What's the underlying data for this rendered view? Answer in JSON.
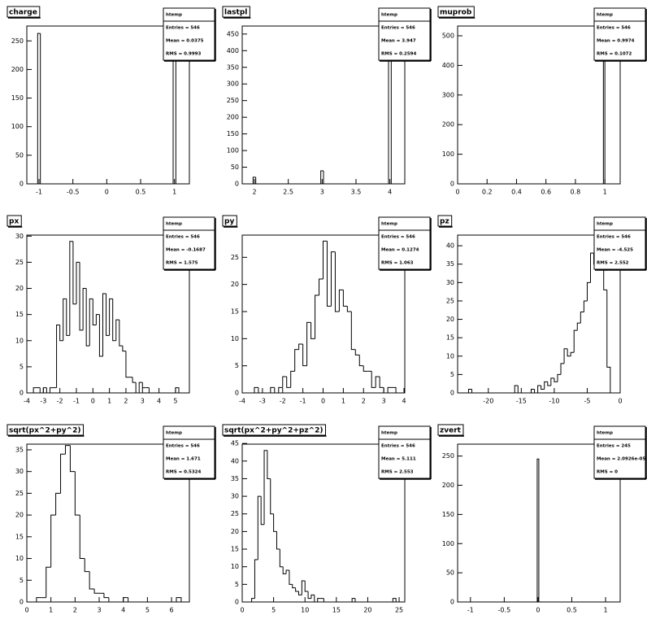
{
  "chart_data": [
    {
      "type": "histogram",
      "title": "charge",
      "color": "#000000",
      "bins": [
        -1.02,
        -0.98,
        0.98,
        1.02
      ],
      "values": [
        263,
        0,
        262
      ],
      "xlim": [
        -1.18,
        1.22
      ],
      "ylim": [
        0,
        276
      ],
      "xticks": [
        -1,
        -0.5,
        0,
        0.5,
        1
      ],
      "yticks": [
        0,
        50,
        100,
        150,
        200,
        250
      ],
      "stats": [
        "htemp",
        "Entries = 546",
        "Mean = 0.0375",
        "RMS = 0.9993"
      ]
    },
    {
      "type": "histogram",
      "title": "lastpl",
      "color": "#000000",
      "bins": [
        1.98,
        2.02,
        2.98,
        3.02,
        3.98,
        4.02
      ],
      "values": [
        20,
        0,
        39,
        0,
        450
      ],
      "xlim": [
        1.82,
        4.22
      ],
      "ylim": [
        0,
        474
      ],
      "xticks": [
        2,
        2.5,
        3,
        3.5,
        4
      ],
      "yticks": [
        0,
        50,
        100,
        150,
        200,
        250,
        300,
        350,
        400,
        450
      ],
      "stats": [
        "htemp",
        "Entries = 546",
        "Mean = 3.947",
        "RMS = 0.2594"
      ]
    },
    {
      "type": "histogram",
      "title": "muprob",
      "color": "#000000",
      "bins": [
        0.99,
        1.0
      ],
      "values": [
        505
      ],
      "xlim": [
        0,
        1.104
      ],
      "ylim": [
        0,
        533
      ],
      "xticks": [
        0,
        0.2,
        0.4,
        0.6,
        0.8,
        1
      ],
      "yticks": [
        0,
        100,
        200,
        300,
        400,
        500
      ],
      "stats": [
        "htemp",
        "Entries = 546",
        "Mean = 0.9974",
        "RMS = 0.1072"
      ]
    },
    {
      "type": "histogram",
      "title": "px",
      "color": "#000000",
      "bins": [
        -3.6,
        -3.4,
        -3.2,
        -3,
        -2.8,
        -2.6,
        -2.4,
        -2.2,
        -2,
        -1.8,
        -1.6,
        -1.4,
        -1.2,
        -1,
        -0.8,
        -0.6,
        -0.4,
        -0.2,
        0,
        0.2,
        0.4,
        0.6,
        0.8,
        1,
        1.2,
        1.4,
        1.6,
        1.8,
        2,
        2.2,
        2.4,
        2.6,
        2.8,
        3,
        3.2,
        3.4,
        3.6,
        3.8,
        4,
        4.2,
        4.4,
        4.6,
        4.8,
        5,
        5.2
      ],
      "values": [
        1,
        1,
        0,
        1,
        0,
        1,
        1,
        13,
        10,
        18,
        11,
        29,
        17,
        25,
        12,
        20,
        9,
        18,
        13,
        15,
        7,
        19,
        11,
        18,
        10,
        14,
        9,
        8,
        3,
        3,
        2,
        0,
        2,
        1,
        1,
        0,
        0,
        0,
        0,
        0,
        0,
        0,
        0,
        1
      ],
      "xlim": [
        -4,
        5.84
      ],
      "ylim": [
        0,
        30.2
      ],
      "xticks": [
        -4,
        -3,
        -2,
        -1,
        0,
        1,
        2,
        3,
        4,
        5
      ],
      "yticks": [
        0,
        5,
        10,
        15,
        20,
        25,
        30
      ],
      "stats": [
        "htemp",
        "Entries = 546",
        "Mean = -0.1687",
        "RMS = 1.575"
      ]
    },
    {
      "type": "histogram",
      "title": "py",
      "color": "#000000",
      "bins": [
        -3.4,
        -3.2,
        -3,
        -2.8,
        -2.6,
        -2.4,
        -2.2,
        -2,
        -1.8,
        -1.6,
        -1.4,
        -1.2,
        -1,
        -0.8,
        -0.6,
        -0.4,
        -0.2,
        0,
        0.2,
        0.4,
        0.6,
        0.8,
        1,
        1.2,
        1.4,
        1.6,
        1.8,
        2,
        2.2,
        2.4,
        2.6,
        2.8,
        3,
        3.2,
        3.4,
        3.6
      ],
      "values": [
        1,
        0,
        0,
        0,
        1,
        0,
        1,
        3,
        1,
        4,
        8,
        9,
        5,
        13,
        10,
        18,
        21,
        28,
        16,
        26,
        15,
        19,
        16,
        15,
        8,
        7,
        5,
        4,
        4,
        1,
        3,
        1,
        0,
        1,
        1
      ],
      "xlim": [
        -4,
        4.04
      ],
      "ylim": [
        0,
        29.1
      ],
      "xticks": [
        -4,
        -3,
        -2,
        -1,
        0,
        1,
        2,
        3,
        4
      ],
      "yticks": [
        0,
        5,
        10,
        15,
        20,
        25
      ],
      "stats": [
        "htemp",
        "Entries = 546",
        "Mean = 0.1274",
        "RMS = 1.063"
      ]
    },
    {
      "type": "histogram",
      "title": "pz",
      "color": "#000000",
      "bins": [
        -23,
        -22.5,
        -22,
        -21.5,
        -21,
        -20.5,
        -20,
        -19.5,
        -19,
        -18.5,
        -18,
        -17.5,
        -17,
        -16.5,
        -16,
        -15.5,
        -15,
        -14.5,
        -14,
        -13.5,
        -13,
        -12.5,
        -12,
        -11.5,
        -11,
        -10.5,
        -10,
        -9.5,
        -9,
        -8.5,
        -8,
        -7.5,
        -7,
        -6.5,
        -6,
        -5.5,
        -5,
        -4.5,
        -4,
        -3.5,
        -3,
        -2.5,
        -2,
        -1.5
      ],
      "values": [
        1,
        0,
        0,
        0,
        0,
        0,
        0,
        0,
        0,
        0,
        0,
        0,
        0,
        0,
        2,
        0,
        0,
        0,
        0,
        1,
        0,
        2,
        1,
        3,
        2,
        4,
        3,
        5,
        8,
        12,
        10,
        11,
        17,
        19,
        22,
        25,
        30,
        38,
        35,
        43,
        40,
        28,
        7
      ],
      "xlim": [
        -24.66,
        0
      ],
      "ylim": [
        0,
        42.9
      ],
      "xticks": [
        -20,
        -15,
        -10,
        -5,
        0
      ],
      "yticks": [
        0,
        5,
        10,
        15,
        20,
        25,
        30,
        35,
        40
      ],
      "stats": [
        "htemp",
        "Entries = 546",
        "Mean = -4.525",
        "RMS = 2.552"
      ]
    },
    {
      "type": "histogram",
      "title": "sqrt(px^2+py^2)",
      "color": "#000000",
      "bins": [
        0.4,
        0.6,
        0.8,
        1,
        1.2,
        1.4,
        1.6,
        1.8,
        2,
        2.2,
        2.4,
        2.6,
        2.8,
        3,
        3.2,
        3.4,
        3.6,
        3.8,
        4,
        4.2,
        4.4,
        4.6,
        4.8,
        5,
        5.2,
        5.4,
        5.6,
        5.8,
        6,
        6.2,
        6.4
      ],
      "values": [
        1,
        1,
        8,
        20,
        25,
        34,
        36,
        30,
        20,
        10,
        7,
        3,
        2,
        2,
        1,
        0,
        0,
        0,
        1,
        0,
        0,
        0,
        0,
        0,
        0,
        0,
        0,
        0,
        0,
        1
      ],
      "xlim": [
        0,
        6.74
      ],
      "ylim": [
        0,
        36.3
      ],
      "xticks": [
        0,
        1,
        2,
        3,
        4,
        5,
        6
      ],
      "yticks": [
        0,
        5,
        10,
        15,
        20,
        25,
        30,
        35
      ],
      "stats": [
        "htemp",
        "Entries = 546",
        "Mean = 1.671",
        "RMS = 0.5324"
      ]
    },
    {
      "type": "histogram",
      "title": "sqrt(px^2+py^2+pz^2)",
      "color": "#000000",
      "bins": [
        1.5,
        2,
        2.5,
        3,
        3.5,
        4,
        4.5,
        5,
        5.5,
        6,
        6.5,
        7,
        7.5,
        8,
        8.5,
        9,
        9.5,
        10,
        10.5,
        11,
        11.5,
        12,
        12.5,
        13,
        13.5,
        14,
        14.5,
        15,
        15.5,
        16,
        16.5,
        17,
        17.5,
        18,
        18.5,
        19,
        19.5,
        20,
        20.5,
        21,
        21.5,
        22,
        22.5,
        23,
        23.5,
        24,
        24.5
      ],
      "values": [
        1,
        12,
        30,
        22,
        43,
        35,
        25,
        20,
        15,
        10,
        8,
        9,
        5,
        4,
        3,
        2,
        6,
        3,
        1,
        2,
        0,
        1,
        1,
        0,
        0,
        0,
        0,
        0,
        0,
        0,
        0,
        0,
        1,
        0,
        0,
        0,
        0,
        0,
        0,
        0,
        0,
        0,
        0,
        0,
        0,
        1
      ],
      "xlim": [
        0,
        25.9
      ],
      "ylim": [
        0,
        44.8
      ],
      "xticks": [
        0,
        5,
        10,
        15,
        20,
        25
      ],
      "yticks": [
        0,
        5,
        10,
        15,
        20,
        25,
        30,
        35,
        40,
        45
      ],
      "stats": [
        "htemp",
        "Entries = 546",
        "Mean = 5.111",
        "RMS = 2.553"
      ]
    },
    {
      "type": "histogram",
      "title": "zvert",
      "color": "#000000",
      "bins": [
        -0.012,
        0.012
      ],
      "values": [
        245
      ],
      "xlim": [
        -1.19,
        1.216
      ],
      "ylim": [
        0,
        270.4
      ],
      "xticks": [
        -1,
        -0.5,
        0,
        0.5,
        1
      ],
      "yticks": [
        0,
        50,
        100,
        150,
        200,
        250
      ],
      "stats": [
        "htemp",
        "Entries = 245",
        "Mean = 2.0926e-05",
        "RMS = 0"
      ]
    }
  ]
}
